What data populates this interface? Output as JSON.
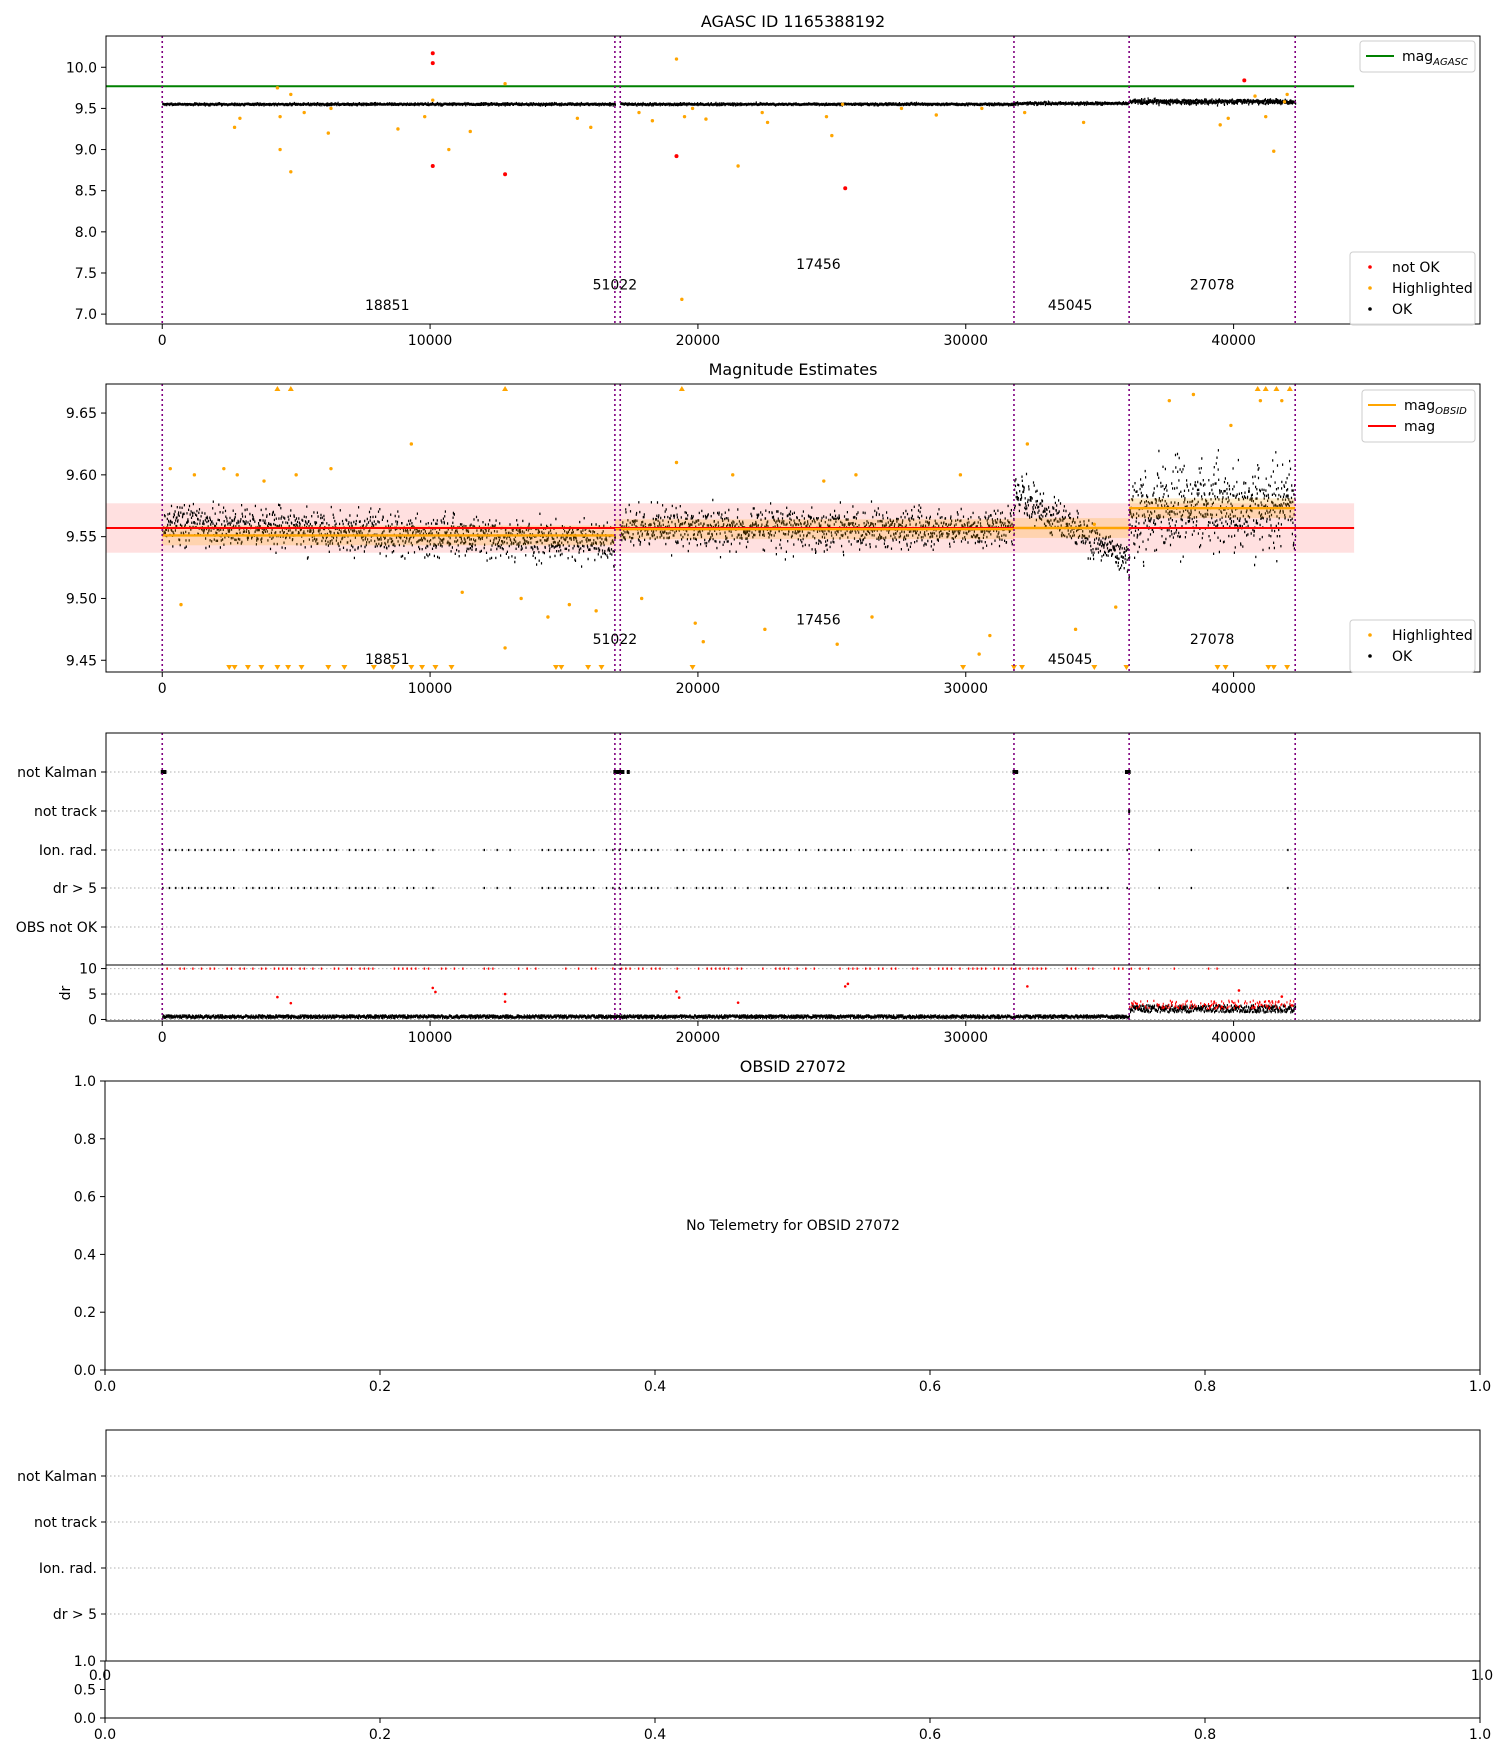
{
  "chart_data": [
    {
      "type": "scatter",
      "title": "AGASC ID 1165388192",
      "xlim": [
        -2100,
        49200
      ],
      "ylim": [
        6.88,
        10.38
      ],
      "x_ticks": [
        0,
        10000,
        20000,
        30000,
        40000
      ],
      "x_tick_labels": [
        "0",
        "10000",
        "20000",
        "30000",
        "40000"
      ],
      "y_ticks": [
        7.0,
        7.5,
        8.0,
        8.5,
        9.0,
        9.5,
        10.0
      ],
      "y_tick_labels": [
        "7.0",
        "7.5",
        "8.0",
        "8.5",
        "9.0",
        "9.5",
        "10.0"
      ],
      "legends": [
        {
          "position": "top-right",
          "entries": [
            {
              "label": "mag",
              "sub": "AGASC",
              "marker": "line",
              "color": "#008000"
            }
          ]
        },
        {
          "position": "bottom-right",
          "entries": [
            {
              "label": "not OK",
              "marker": "dot",
              "color": "#ff0000"
            },
            {
              "label": "Highlighted",
              "marker": "dot",
              "color": "#ffa500"
            },
            {
              "label": "OK",
              "marker": "dot",
              "color": "#000000"
            }
          ]
        }
      ],
      "hlines": [
        {
          "name": "mag_AGASC",
          "y": 9.77,
          "x_start": -2100,
          "x_end": 44500,
          "color": "#008000"
        }
      ],
      "vlines": [
        0,
        16900,
        17100,
        31800,
        36100,
        42300
      ],
      "obsid_labels": [
        {
          "text": "18851",
          "x": 8400,
          "y": 7.05
        },
        {
          "text": "51022",
          "x": 16900,
          "y": 7.3
        },
        {
          "text": "17456",
          "x": 24500,
          "y": 7.55
        },
        {
          "text": "45045",
          "x": 33900,
          "y": 7.05
        },
        {
          "text": "27078",
          "x": 39200,
          "y": 7.3
        }
      ],
      "segments": [
        {
          "x_start": 0,
          "x_end": 16900,
          "mean": 9.55,
          "spread": 0.012
        },
        {
          "x_start": 17100,
          "x_end": 31800,
          "mean": 9.55,
          "spread": 0.012
        },
        {
          "x_start": 31800,
          "x_end": 36100,
          "mean": 9.56,
          "spread": 0.015
        },
        {
          "x_start": 36100,
          "x_end": 42300,
          "mean": 9.58,
          "spread": 0.03
        }
      ],
      "highlighted_points": [
        [
          4300,
          9.75
        ],
        [
          4400,
          9.4
        ],
        [
          4400,
          9.0
        ],
        [
          4800,
          8.73
        ],
        [
          4800,
          9.67
        ],
        [
          2700,
          9.27
        ],
        [
          2900,
          9.38
        ],
        [
          5300,
          9.45
        ],
        [
          6200,
          9.2
        ],
        [
          6300,
          9.5
        ],
        [
          8800,
          9.25
        ],
        [
          9800,
          9.4
        ],
        [
          10100,
          9.6
        ],
        [
          10700,
          9.0
        ],
        [
          11500,
          9.22
        ],
        [
          12800,
          9.8
        ],
        [
          15500,
          9.38
        ],
        [
          16000,
          9.27
        ],
        [
          17800,
          9.45
        ],
        [
          18300,
          9.35
        ],
        [
          19200,
          10.1
        ],
        [
          19500,
          9.4
        ],
        [
          19800,
          9.5
        ],
        [
          20300,
          9.37
        ],
        [
          21500,
          8.8
        ],
        [
          22400,
          9.45
        ],
        [
          22600,
          9.33
        ],
        [
          24800,
          9.4
        ],
        [
          25000,
          9.17
        ],
        [
          25400,
          9.55
        ],
        [
          27600,
          9.5
        ],
        [
          28900,
          9.42
        ],
        [
          30600,
          9.5
        ],
        [
          32200,
          9.45
        ],
        [
          34400,
          9.33
        ],
        [
          39500,
          9.3
        ],
        [
          39800,
          9.38
        ],
        [
          40800,
          9.65
        ],
        [
          41200,
          9.4
        ],
        [
          41500,
          8.98
        ],
        [
          41900,
          9.58
        ],
        [
          42000,
          9.67
        ],
        [
          19400,
          7.18
        ]
      ],
      "not_ok_points": [
        [
          10100,
          10.17
        ],
        [
          10100,
          10.05
        ],
        [
          10100,
          8.8
        ],
        [
          12800,
          8.7
        ],
        [
          19200,
          8.92
        ],
        [
          25500,
          8.53
        ],
        [
          40400,
          9.84
        ]
      ]
    },
    {
      "type": "scatter",
      "title": "Magnitude Estimates",
      "xlim": [
        -2100,
        49200
      ],
      "ylim": [
        9.4405,
        9.6735
      ],
      "x_ticks": [
        0,
        10000,
        20000,
        30000,
        40000
      ],
      "x_tick_labels": [
        "0",
        "10000",
        "20000",
        "30000",
        "40000"
      ],
      "y_ticks": [
        9.45,
        9.5,
        9.55,
        9.6,
        9.65
      ],
      "y_tick_labels": [
        "9.45",
        "9.50",
        "9.55",
        "9.60",
        "9.65"
      ],
      "legends": [
        {
          "position": "top-right",
          "entries": [
            {
              "label": "mag",
              "sub": "OBSID",
              "marker": "line",
              "color": "#ffa500"
            },
            {
              "label": "mag",
              "marker": "line",
              "color": "#ff0000"
            }
          ]
        },
        {
          "position": "bottom-right",
          "entries": [
            {
              "label": "Highlighted",
              "marker": "dot",
              "color": "#ffa500"
            },
            {
              "label": "OK",
              "marker": "dot",
              "color": "#000000"
            }
          ]
        }
      ],
      "mag_line": {
        "y": 9.557,
        "band": [
          9.537,
          9.577
        ],
        "x_start": -2100,
        "x_end": 44500,
        "color": "#ff0000"
      },
      "obsid_lines": [
        {
          "x_start": 0,
          "x_end": 16900,
          "y": 9.551
        },
        {
          "x_start": 16900,
          "x_end": 31800,
          "y": 9.556
        },
        {
          "x_start": 31800,
          "x_end": 36100,
          "y": 9.557
        },
        {
          "x_start": 36100,
          "x_end": 42300,
          "y": 9.573
        }
      ],
      "vlines": [
        0,
        16900,
        17100,
        31800,
        36100,
        42300
      ],
      "obsid_labels": [
        {
          "text": "18851",
          "x": 8400,
          "y": 9.447
        },
        {
          "text": "51022",
          "x": 16900,
          "y": 9.463
        },
        {
          "text": "17456",
          "x": 24500,
          "y": 9.479
        },
        {
          "text": "45045",
          "x": 33900,
          "y": 9.447
        },
        {
          "text": "27078",
          "x": 39200,
          "y": 9.463
        }
      ],
      "segments": [
        {
          "x_start": 0,
          "x_end": 16900,
          "mean_start": 9.56,
          "mean_end": 9.545,
          "spread": 0.016
        },
        {
          "x_start": 17100,
          "x_end": 31800,
          "mean_start": 9.557,
          "mean_end": 9.556,
          "spread": 0.016
        },
        {
          "x_start": 31800,
          "x_end": 36100,
          "mean_start": 9.585,
          "mean_end": 9.53,
          "spread": 0.016
        },
        {
          "x_start": 36100,
          "x_end": 42300,
          "mean_start": 9.568,
          "mean_end": 9.575,
          "spread": 0.032
        }
      ],
      "highlighted_points": [
        [
          300,
          9.605
        ],
        [
          700,
          9.495
        ],
        [
          1200,
          9.6
        ],
        [
          2300,
          9.605
        ],
        [
          2800,
          9.6
        ],
        [
          3800,
          9.595
        ],
        [
          5000,
          9.6
        ],
        [
          6300,
          9.605
        ],
        [
          9300,
          9.625
        ],
        [
          12800,
          9.46
        ],
        [
          13400,
          9.5
        ],
        [
          15200,
          9.495
        ],
        [
          17900,
          9.5
        ],
        [
          19200,
          9.61
        ],
        [
          19900,
          9.48
        ],
        [
          20200,
          9.465
        ],
        [
          21300,
          9.6
        ],
        [
          22500,
          9.475
        ],
        [
          24700,
          9.595
        ],
        [
          25200,
          9.463
        ],
        [
          25900,
          9.6
        ],
        [
          26500,
          9.485
        ],
        [
          29800,
          9.6
        ],
        [
          30500,
          9.455
        ],
        [
          30900,
          9.47
        ],
        [
          32300,
          9.625
        ],
        [
          34100,
          9.475
        ],
        [
          34800,
          9.56
        ],
        [
          35600,
          9.493
        ],
        [
          37600,
          9.66
        ],
        [
          38500,
          9.665
        ],
        [
          39900,
          9.64
        ],
        [
          41000,
          9.66
        ],
        [
          41800,
          9.66
        ],
        [
          16200,
          9.49
        ],
        [
          11200,
          9.505
        ],
        [
          14400,
          9.485
        ]
      ],
      "clipped_top": [
        4300,
        4800,
        12800,
        19400,
        40900,
        41200,
        41600,
        42100
      ],
      "clipped_bottom": [
        2500,
        2700,
        3200,
        3700,
        4300,
        4700,
        5200,
        6200,
        6800,
        7900,
        8600,
        9300,
        9700,
        10200,
        10800,
        14700,
        14900,
        15900,
        16400,
        19800,
        29900,
        31800,
        32100,
        34800,
        36000,
        39400,
        39700,
        41300,
        41500,
        42000
      ]
    },
    {
      "type": "scatter",
      "xlim": [
        -2100,
        49200
      ],
      "x_ticks": [
        0,
        10000,
        20000,
        30000,
        40000
      ],
      "x_tick_labels": [
        "0",
        "10000",
        "20000",
        "30000",
        "40000"
      ],
      "flag_rows": [
        "not Kalman",
        "not track",
        "Ion. rad.",
        "dr > 5",
        "OBS not OK"
      ],
      "vlines": [
        0,
        16900,
        17100,
        31800,
        36100,
        42300
      ],
      "not_kalman_x": [
        0,
        100,
        16900,
        17000,
        17100,
        17200,
        17400,
        31800,
        31900,
        36000,
        36100
      ],
      "not_track_x": [
        36100
      ],
      "dr_panel": {
        "ylabel": "dr",
        "ylim": [
          -0.3,
          10.7
        ],
        "y_ticks": [
          0,
          5,
          10
        ],
        "y_tick_labels": [
          "0",
          "5",
          "10"
        ]
      },
      "dr_outliers": [
        [
          4300,
          4.4
        ],
        [
          4800,
          3.2
        ],
        [
          10100,
          6.2
        ],
        [
          10200,
          5.4
        ],
        [
          12800,
          5.0
        ],
        [
          12800,
          3.5
        ],
        [
          19200,
          5.5
        ],
        [
          19300,
          4.3
        ],
        [
          21500,
          3.3
        ],
        [
          25500,
          6.5
        ],
        [
          25600,
          7.0
        ],
        [
          32300,
          6.5
        ],
        [
          40200,
          5.7
        ],
        [
          41800,
          4.5
        ]
      ]
    },
    {
      "type": "scatter",
      "title": "OBSID 27072",
      "xlim": [
        0,
        1
      ],
      "ylim": [
        0,
        1
      ],
      "x_ticks": [
        0,
        0.2,
        0.4,
        0.6,
        0.8,
        1.0
      ],
      "x_tick_labels": [
        "0.0",
        "0.2",
        "0.4",
        "0.6",
        "0.8",
        "1.0"
      ],
      "y_ticks": [
        0,
        0.2,
        0.4,
        0.6,
        0.8,
        1.0
      ],
      "y_tick_labels": [
        "0.0",
        "0.2",
        "0.4",
        "0.6",
        "0.8",
        "1.0"
      ],
      "annotation": "No Telemetry for OBSID 27072"
    },
    {
      "type": "scatter",
      "flag_rows": [
        "not Kalman",
        "not track",
        "Ion. rad.",
        "dr > 5"
      ],
      "x_ticks": [
        0,
        0.2,
        0.4,
        0.6,
        0.8,
        1.0
      ],
      "x_tick_labels": [
        "0.0",
        "0.2",
        "0.4",
        "0.6",
        "0.8",
        "1.0"
      ],
      "y_ticks": [
        0,
        0.5,
        1.0
      ],
      "y_tick_labels": [
        "0.0",
        "0.5",
        "1.0"
      ],
      "hidden_tick_left": "0.0",
      "hidden_tick_right": "1.0"
    }
  ]
}
